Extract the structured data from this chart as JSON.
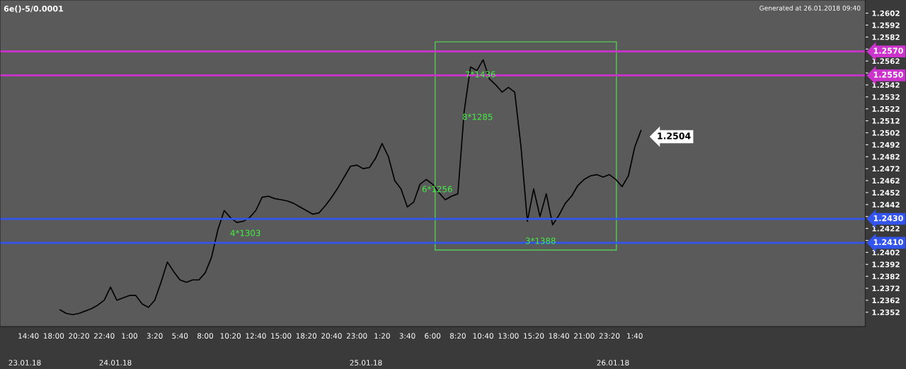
{
  "chart_data": {
    "type": "line",
    "title": "6e()-5/0.0001",
    "subtitle": "Generated at 26.01.2018 09:40",
    "categories": [
      "14:40",
      null,
      null,
      null,
      "18:00",
      null,
      null,
      null,
      "20:20",
      null,
      null,
      null,
      "22:40",
      null,
      null,
      null,
      "1:00",
      null,
      null,
      null,
      "3:20",
      null,
      null,
      null,
      "5:40",
      null,
      null,
      null,
      "8:00",
      null,
      null,
      null,
      "10:20",
      null,
      null,
      null,
      "12:40",
      null,
      null,
      null,
      "15:00",
      null,
      null,
      null,
      "18:20",
      null,
      null,
      null,
      "20:40",
      null,
      null,
      null,
      "23:00",
      null,
      null,
      null,
      "1:20",
      null,
      null,
      null,
      "3:40",
      null,
      null,
      null,
      "6:00",
      null,
      null,
      null,
      "8:20",
      null,
      null,
      null,
      "10:40",
      null,
      null,
      null,
      "13:00",
      null,
      null,
      null,
      "15:20",
      null,
      null,
      null,
      "18:40",
      null,
      null,
      null,
      "21:00",
      null,
      null,
      null,
      "23:20",
      null,
      null,
      null,
      "1:40",
      null,
      null,
      null,
      null,
      null,
      null,
      null,
      null,
      null,
      null,
      null,
      null,
      null,
      null,
      null,
      null,
      null,
      null,
      null,
      null,
      null,
      null,
      null,
      null,
      null,
      null,
      null,
      null,
      null,
      null,
      null,
      null,
      null,
      null,
      null,
      null
    ],
    "series": [
      {
        "color": "#000000",
        "values": [
          null,
          null,
          null,
          null,
          null,
          1.2354,
          1.2351,
          1.235,
          1.2351,
          1.2353,
          1.2355,
          1.2358,
          1.2362,
          1.2373,
          1.2362,
          1.2364,
          1.2366,
          1.2366,
          1.2359,
          1.2356,
          1.2362,
          1.2377,
          1.2394,
          1.2386,
          1.2379,
          1.2377,
          1.2379,
          1.2379,
          1.2385,
          1.2398,
          1.2421,
          1.2437,
          1.2431,
          1.2427,
          1.2428,
          1.2431,
          1.2437,
          1.2448,
          1.2449,
          1.2447,
          1.2446,
          1.2445,
          1.2443,
          1.244,
          1.2437,
          1.2434,
          1.2435,
          1.2441,
          1.2448,
          1.2456,
          1.2465,
          1.2474,
          1.2475,
          1.2472,
          1.2473,
          1.2481,
          1.2493,
          1.2482,
          1.2462,
          1.2455,
          1.244,
          1.2444,
          1.2459,
          1.2463,
          1.2459,
          1.2452,
          1.2446,
          1.2449,
          1.2451,
          1.252,
          1.2557,
          1.2554,
          1.2563,
          1.2547,
          1.2542,
          1.2536,
          1.254,
          1.2536,
          1.249,
          1.2428,
          1.2455,
          1.2432,
          1.2451,
          1.2425,
          1.2433,
          1.2443,
          1.2449,
          1.2458,
          1.2463,
          1.2466,
          1.2467,
          1.2465,
          1.2467,
          1.2463,
          1.2457,
          1.2466,
          1.249,
          1.2504,
          null,
          null,
          null,
          null,
          null,
          null,
          null,
          null,
          null,
          null,
          null,
          null,
          null,
          null,
          null,
          null,
          null,
          null,
          null,
          null,
          null,
          null,
          null,
          null,
          null,
          null,
          null,
          null,
          null,
          null,
          null,
          null,
          null,
          null,
          null
        ]
      }
    ],
    "ylim": [
      1.234,
      1.2613
    ],
    "yticks": [
      {
        "value": 1.2352,
        "label": "1.2352"
      },
      {
        "value": 1.2362,
        "label": "1.2362"
      },
      {
        "value": 1.2372,
        "label": "1.2372"
      },
      {
        "value": 1.2382,
        "label": "1.2382"
      },
      {
        "value": 1.2392,
        "label": "1.2392"
      },
      {
        "value": 1.2402,
        "label": "1.2402"
      },
      {
        "value": 1.2412,
        "label": null
      },
      {
        "value": 1.2422,
        "label": "1.2422"
      },
      {
        "value": 1.2432,
        "label": null
      },
      {
        "value": 1.2442,
        "label": "1.2442"
      },
      {
        "value": 1.2452,
        "label": "1.2452"
      },
      {
        "value": 1.2462,
        "label": "1.2462"
      },
      {
        "value": 1.2472,
        "label": "1.2472"
      },
      {
        "value": 1.2482,
        "label": "1.2482"
      },
      {
        "value": 1.2492,
        "label": "1.2492"
      },
      {
        "value": 1.2502,
        "label": "1.2502"
      },
      {
        "value": 1.2512,
        "label": "1.2512"
      },
      {
        "value": 1.2522,
        "label": "1.2522"
      },
      {
        "value": 1.2532,
        "label": "1.2532"
      },
      {
        "value": 1.2542,
        "label": "1.2542"
      },
      {
        "value": 1.2552,
        "label": null
      },
      {
        "value": 1.2562,
        "label": "1.2562"
      },
      {
        "value": 1.2572,
        "label": null
      },
      {
        "value": 1.2582,
        "label": "1.2582"
      },
      {
        "value": 1.2592,
        "label": "1.2592"
      },
      {
        "value": 1.2602,
        "label": "1.2602"
      }
    ],
    "ref_lines": [
      {
        "axis": "y",
        "value": 1.257,
        "label": "1.2570",
        "color": "#cc33cc"
      },
      {
        "axis": "y",
        "value": 1.255,
        "label": "1.2550",
        "color": "#cc33cc"
      },
      {
        "axis": "y",
        "value": 1.243,
        "label": "1.2430",
        "color": "#3355ee"
      },
      {
        "axis": "y",
        "value": 1.241,
        "label": "1.2410",
        "color": "#3355ee"
      }
    ],
    "annotations": [
      "1.2504",
      "4*1303",
      "6*1256",
      "7*1436",
      "8*1285",
      "3*1388",
      "23.01.18",
      "24.01.18",
      "25.01.18",
      "26.01.18"
    ],
    "grid": false
  }
}
